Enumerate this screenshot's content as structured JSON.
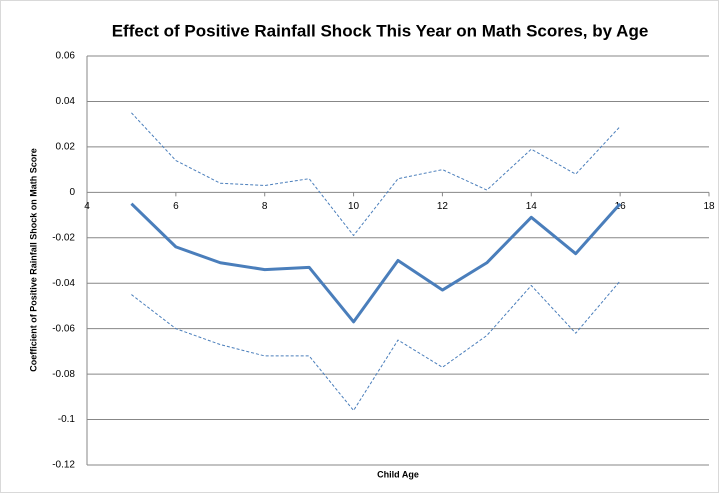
{
  "chart_data": {
    "type": "line",
    "title": "Effect of Positive Rainfall Shock This Year on Math Scores, by Age",
    "x_label": "Child Age",
    "y_label": "Coefficient of Positive Rainfall Shock on Math Score",
    "x": [
      5,
      6,
      7,
      8,
      9,
      10,
      11,
      12,
      13,
      14,
      15,
      16
    ],
    "series": [
      {
        "color": "#4a7ebb",
        "dashed": false,
        "values": [
          -0.005,
          -0.024,
          -0.031,
          -0.034,
          -0.033,
          -0.057,
          -0.03,
          -0.043,
          -0.031,
          -0.011,
          -0.027,
          -0.005
        ]
      },
      {
        "color": "#4a7ebb",
        "dashed": true,
        "values": [
          0.035,
          0.014,
          0.004,
          0.003,
          0.006,
          -0.019,
          0.006,
          0.01,
          0.001,
          0.019,
          0.008,
          0.029
        ]
      },
      {
        "color": "#4a7ebb",
        "dashed": true,
        "values": [
          -0.045,
          -0.06,
          -0.067,
          -0.072,
          -0.072,
          -0.096,
          -0.065,
          -0.077,
          -0.063,
          -0.041,
          -0.062,
          -0.039
        ]
      }
    ],
    "xlim": [
      4,
      18
    ],
    "xticks": [
      4,
      6,
      8,
      10,
      12,
      14,
      16,
      18
    ],
    "ylim": [
      -0.12,
      0.06
    ],
    "yticks": [
      -0.12,
      -0.1,
      -0.08,
      -0.06,
      -0.04,
      -0.02,
      0,
      0.02,
      0.04,
      0.06
    ],
    "grid": true
  }
}
